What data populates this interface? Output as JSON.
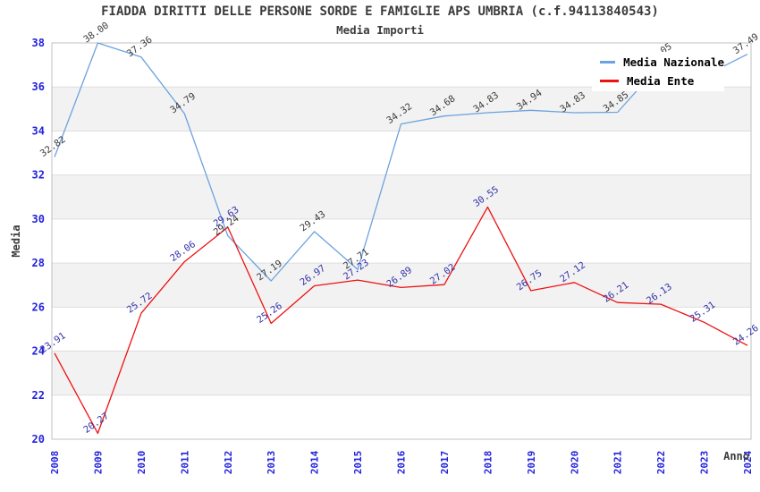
{
  "title": "FIADDA DIRITTI DELLE PERSONE SORDE E FAMIGLIE APS UMBRIA (c.f.94113840543)",
  "subtitle": "Media Importi",
  "legend": {
    "items": [
      {
        "label": "Media Nazionale",
        "color": "#6CA2DF"
      },
      {
        "label": "Media Ente",
        "color": "#EE1111"
      }
    ]
  },
  "axes": {
    "x_label": "Anno",
    "y_label": "Media",
    "y_ticks": [
      20,
      22,
      24,
      26,
      28,
      30,
      32,
      34,
      36,
      38
    ],
    "tick_color": "#2222DD",
    "axis_title_color": "#3c3c3c"
  },
  "chart_data": {
    "type": "line",
    "title": "FIADDA DIRITTI DELLE PERSONE SORDE E FAMIGLIE APS UMBRIA (c.f.94113840543)",
    "subtitle": "Media Importi",
    "xlabel": "Anno",
    "ylabel": "Media",
    "ylim": [
      20,
      38
    ],
    "grid": "banded",
    "band_color": "#f2f2f2",
    "gridline_color": "#dedede",
    "frame_color": "#c0c0c0",
    "legend_position": "top-right",
    "x": [
      2008,
      2009,
      2010,
      2011,
      2012,
      2013,
      2014,
      2015,
      2016,
      2017,
      2018,
      2019,
      2020,
      2021,
      2022,
      2023,
      2024
    ],
    "series": [
      {
        "name": "Media Nazionale",
        "color": "#6CA2DF",
        "label_color": "#3c3c3c",
        "values": [
          32.82,
          38.0,
          37.36,
          34.79,
          29.24,
          27.19,
          29.43,
          27.71,
          34.32,
          34.68,
          34.83,
          34.94,
          34.83,
          34.85,
          37.05,
          36.5,
          37.49
        ],
        "labels": [
          "32.82",
          "38.00",
          "37.36",
          "34.79",
          "29.24",
          "27.19",
          "29.43",
          "27.71",
          "34.32",
          "34.68",
          "34.83",
          "34.94",
          "34.83",
          "34.85",
          "37.05",
          "",
          "37.49"
        ]
      },
      {
        "name": "Media Ente",
        "color": "#EE1111",
        "label_color": "#3333AA",
        "values": [
          23.91,
          20.27,
          25.72,
          28.06,
          29.63,
          25.26,
          26.97,
          27.23,
          26.89,
          27.02,
          30.55,
          26.75,
          27.12,
          26.21,
          26.13,
          25.31,
          24.26
        ],
        "labels": [
          "23.91",
          "20.27",
          "25.72",
          "28.06",
          "29.63",
          "25.26",
          "26.97",
          "27.23",
          "26.89",
          "27.02",
          "30.55",
          "26.75",
          "27.12",
          "26.21",
          "26.13",
          "25.31",
          "24.26"
        ]
      }
    ]
  }
}
